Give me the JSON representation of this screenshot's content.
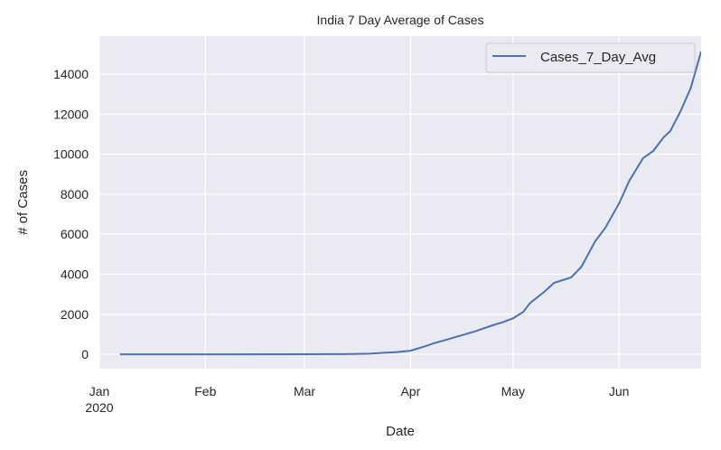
{
  "chart_data": {
    "type": "line",
    "title": "India 7 Day Average of Cases",
    "xlabel": "Date",
    "ylabel": "# of Cases",
    "xlim": [
      "2020-01-01",
      "2020-06-25"
    ],
    "ylim": [
      -720,
      15900
    ],
    "x_ticks": [
      {
        "date": "2020-01-01",
        "label": "Jan",
        "sublabel": "2020"
      },
      {
        "date": "2020-02-01",
        "label": "Feb"
      },
      {
        "date": "2020-03-01",
        "label": "Mar"
      },
      {
        "date": "2020-04-01",
        "label": "Apr"
      },
      {
        "date": "2020-05-01",
        "label": "May"
      },
      {
        "date": "2020-06-01",
        "label": "Jun"
      }
    ],
    "y_ticks": [
      0,
      2000,
      4000,
      6000,
      8000,
      10000,
      12000,
      14000
    ],
    "grid": true,
    "legend": {
      "position": "top-right",
      "entries": [
        "Cases_7_Day_Avg"
      ]
    },
    "background": "#eaeaf2",
    "series": [
      {
        "name": "Cases_7_Day_Avg",
        "color": "#4c72b0",
        "points": [
          [
            "2020-01-07",
            0
          ],
          [
            "2020-02-01",
            0
          ],
          [
            "2020-03-01",
            1
          ],
          [
            "2020-03-10",
            5
          ],
          [
            "2020-03-15",
            12
          ],
          [
            "2020-03-20",
            30
          ],
          [
            "2020-03-25",
            80
          ],
          [
            "2020-03-28",
            110
          ],
          [
            "2020-04-01",
            180
          ],
          [
            "2020-04-05",
            380
          ],
          [
            "2020-04-08",
            560
          ],
          [
            "2020-04-11",
            700
          ],
          [
            "2020-04-15",
            900
          ],
          [
            "2020-04-20",
            1150
          ],
          [
            "2020-04-25",
            1450
          ],
          [
            "2020-04-28",
            1600
          ],
          [
            "2020-05-01",
            1800
          ],
          [
            "2020-05-04",
            2120
          ],
          [
            "2020-05-06",
            2570
          ],
          [
            "2020-05-10",
            3100
          ],
          [
            "2020-05-13",
            3570
          ],
          [
            "2020-05-18",
            3840
          ],
          [
            "2020-05-21",
            4380
          ],
          [
            "2020-05-25",
            5650
          ],
          [
            "2020-05-28",
            6320
          ],
          [
            "2020-06-01",
            7540
          ],
          [
            "2020-06-04",
            8670
          ],
          [
            "2020-06-08",
            9800
          ],
          [
            "2020-06-11",
            10160
          ],
          [
            "2020-06-14",
            10840
          ],
          [
            "2020-06-16",
            11160
          ],
          [
            "2020-06-19",
            12150
          ],
          [
            "2020-06-22",
            13320
          ],
          [
            "2020-06-25",
            15130
          ]
        ]
      }
    ]
  }
}
